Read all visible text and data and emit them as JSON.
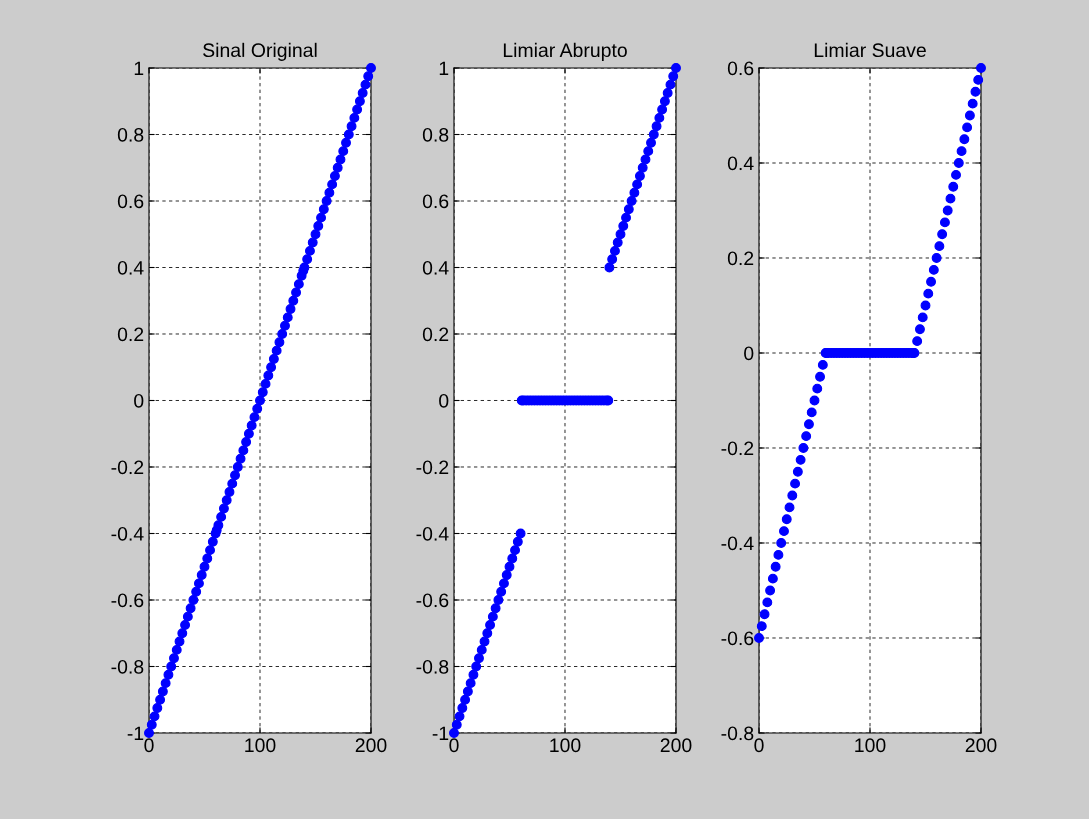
{
  "chart_data": [
    {
      "type": "scatter",
      "title": "Sinal Original",
      "marker": "circle",
      "grid": true,
      "xlim": [
        0,
        200
      ],
      "xticks": [
        0,
        100,
        200
      ],
      "ylim": [
        -1,
        1
      ],
      "yticks": [
        -1,
        -0.8,
        -0.6,
        -0.4,
        -0.2,
        0,
        0.2,
        0.4,
        0.6,
        0.8,
        1
      ],
      "series": [
        {
          "color": "#0000ff",
          "x": [
            0,
            2.5,
            5,
            7.5,
            10,
            12.5,
            15,
            17.5,
            20,
            22.5,
            25,
            27.5,
            30,
            32.5,
            35,
            37.5,
            40,
            42.5,
            45,
            47.5,
            50,
            52.5,
            55,
            57.5,
            60,
            61,
            62.5,
            65,
            67.5,
            70,
            72.5,
            75,
            77.5,
            80,
            82.5,
            85,
            87.5,
            90,
            92.5,
            95,
            97.5,
            100,
            102.5,
            105,
            107.5,
            110,
            112.5,
            115,
            117.5,
            120,
            122.5,
            125,
            127.5,
            130,
            132.5,
            135,
            137.5,
            139,
            140,
            142.5,
            145,
            147.5,
            150,
            152.5,
            155,
            157.5,
            160,
            162.5,
            165,
            167.5,
            170,
            172.5,
            175,
            177.5,
            180,
            182.5,
            185,
            187.5,
            190,
            192.5,
            195,
            197.5,
            200
          ],
          "values": [
            -1,
            -0.975,
            -0.95,
            -0.925,
            -0.9,
            -0.875,
            -0.85,
            -0.825,
            -0.8,
            -0.775,
            -0.75,
            -0.725,
            -0.7,
            -0.675,
            -0.65,
            -0.625,
            -0.6,
            -0.575,
            -0.55,
            -0.525,
            -0.5,
            -0.475,
            -0.45,
            -0.425,
            -0.4,
            -0.39,
            -0.375,
            -0.35,
            -0.325,
            -0.3,
            -0.275,
            -0.25,
            -0.225,
            -0.2,
            -0.175,
            -0.15,
            -0.125,
            -0.1,
            -0.075,
            -0.05,
            -0.025,
            0,
            0.025,
            0.05,
            0.075,
            0.1,
            0.125,
            0.15,
            0.175,
            0.2,
            0.225,
            0.25,
            0.275,
            0.3,
            0.325,
            0.35,
            0.375,
            0.39,
            0.4,
            0.425,
            0.45,
            0.475,
            0.5,
            0.525,
            0.55,
            0.575,
            0.6,
            0.625,
            0.65,
            0.675,
            0.7,
            0.725,
            0.75,
            0.775,
            0.8,
            0.825,
            0.85,
            0.875,
            0.9,
            0.925,
            0.95,
            0.975,
            1
          ]
        }
      ]
    },
    {
      "type": "scatter",
      "title": "Limiar Abrupto",
      "marker": "circle",
      "grid": true,
      "xlim": [
        0,
        200
      ],
      "xticks": [
        0,
        100,
        200
      ],
      "ylim": [
        -1,
        1
      ],
      "yticks": [
        -1,
        -0.8,
        -0.6,
        -0.4,
        -0.2,
        0,
        0.2,
        0.4,
        0.6,
        0.8,
        1
      ],
      "series": [
        {
          "color": "#0000ff",
          "x": [
            0,
            2.5,
            5,
            7.5,
            10,
            12.5,
            15,
            17.5,
            20,
            22.5,
            25,
            27.5,
            30,
            32.5,
            35,
            37.5,
            40,
            42.5,
            45,
            47.5,
            50,
            52.5,
            55,
            57.5,
            60,
            61,
            62.5,
            65,
            67.5,
            70,
            72.5,
            75,
            77.5,
            80,
            82.5,
            85,
            87.5,
            90,
            92.5,
            95,
            97.5,
            100,
            102.5,
            105,
            107.5,
            110,
            112.5,
            115,
            117.5,
            120,
            122.5,
            125,
            127.5,
            130,
            132.5,
            135,
            137.5,
            139,
            140,
            142.5,
            145,
            147.5,
            150,
            152.5,
            155,
            157.5,
            160,
            162.5,
            165,
            167.5,
            170,
            172.5,
            175,
            177.5,
            180,
            182.5,
            185,
            187.5,
            190,
            192.5,
            195,
            197.5,
            200
          ],
          "values": [
            -1,
            -0.975,
            -0.95,
            -0.925,
            -0.9,
            -0.875,
            -0.85,
            -0.825,
            -0.8,
            -0.775,
            -0.75,
            -0.725,
            -0.7,
            -0.675,
            -0.65,
            -0.625,
            -0.6,
            -0.575,
            -0.55,
            -0.525,
            -0.5,
            -0.475,
            -0.45,
            -0.425,
            -0.4,
            0,
            0,
            0,
            0,
            0,
            0,
            0,
            0,
            0,
            0,
            0,
            0,
            0,
            0,
            0,
            0,
            0,
            0,
            0,
            0,
            0,
            0,
            0,
            0,
            0,
            0,
            0,
            0,
            0,
            0,
            0,
            0,
            0,
            0.4,
            0.425,
            0.45,
            0.475,
            0.5,
            0.525,
            0.55,
            0.575,
            0.6,
            0.625,
            0.65,
            0.675,
            0.7,
            0.725,
            0.75,
            0.775,
            0.8,
            0.825,
            0.85,
            0.875,
            0.9,
            0.925,
            0.95,
            0.975,
            1
          ]
        }
      ]
    },
    {
      "type": "scatter",
      "title": "Limiar Suave",
      "marker": "circle",
      "grid": true,
      "xlim": [
        0,
        200
      ],
      "xticks": [
        0,
        100,
        200
      ],
      "ylim": [
        -0.8,
        0.6
      ],
      "yticks": [
        -0.8,
        -0.6,
        -0.4,
        -0.2,
        0,
        0.2,
        0.4,
        0.6
      ],
      "series": [
        {
          "color": "#0000ff",
          "x": [
            0,
            2.5,
            5,
            7.5,
            10,
            12.5,
            15,
            17.5,
            20,
            22.5,
            25,
            27.5,
            30,
            32.5,
            35,
            37.5,
            40,
            42.5,
            45,
            47.5,
            50,
            52.5,
            55,
            57.5,
            60,
            61,
            62.5,
            65,
            67.5,
            70,
            72.5,
            75,
            77.5,
            80,
            82.5,
            85,
            87.5,
            90,
            92.5,
            95,
            97.5,
            100,
            102.5,
            105,
            107.5,
            110,
            112.5,
            115,
            117.5,
            120,
            122.5,
            125,
            127.5,
            130,
            132.5,
            135,
            137.5,
            139,
            140,
            142.5,
            145,
            147.5,
            150,
            152.5,
            155,
            157.5,
            160,
            162.5,
            165,
            167.5,
            170,
            172.5,
            175,
            177.5,
            180,
            182.5,
            185,
            187.5,
            190,
            192.5,
            195,
            197.5,
            200
          ],
          "values": [
            -0.6,
            -0.575,
            -0.55,
            -0.525,
            -0.5,
            -0.475,
            -0.45,
            -0.425,
            -0.4,
            -0.375,
            -0.35,
            -0.325,
            -0.3,
            -0.275,
            -0.25,
            -0.225,
            -0.2,
            -0.175,
            -0.15,
            -0.125,
            -0.1,
            -0.075,
            -0.05,
            -0.025,
            0,
            0,
            0,
            0,
            0,
            0,
            0,
            0,
            0,
            0,
            0,
            0,
            0,
            0,
            0,
            0,
            0,
            0,
            0,
            0,
            0,
            0,
            0,
            0,
            0,
            0,
            0,
            0,
            0,
            0,
            0,
            0,
            0,
            0,
            0,
            0.025,
            0.05,
            0.075,
            0.1,
            0.125,
            0.15,
            0.175,
            0.2,
            0.225,
            0.25,
            0.275,
            0.3,
            0.325,
            0.35,
            0.375,
            0.4,
            0.425,
            0.45,
            0.475,
            0.5,
            0.525,
            0.55,
            0.575,
            0.6
          ]
        }
      ]
    }
  ]
}
